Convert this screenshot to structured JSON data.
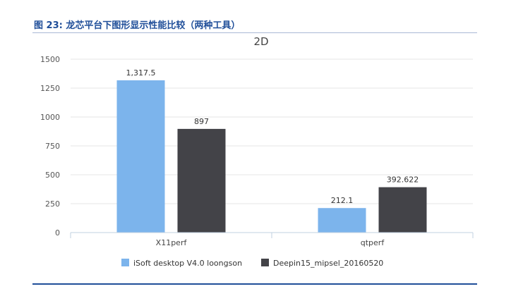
{
  "figure": {
    "caption": "图 23: 龙芯平台下图形显示性能比较（两种工具）"
  },
  "colors": {
    "series1": "#7cb4ec",
    "series2": "#434348",
    "grid": "#e6e6e6",
    "axis": "#c0d0e0",
    "caption": "#1f4e99"
  },
  "chart_data": {
    "type": "bar",
    "title": "2D",
    "xlabel": "",
    "ylabel": "",
    "categories": [
      "X11perf",
      "qtperf"
    ],
    "series": [
      {
        "name": "iSoft desktop V4.0 loongson",
        "values": [
          1317.5,
          212.1
        ],
        "labels": [
          "1,317.5",
          "212.1"
        ]
      },
      {
        "name": "Deepin15_mipsel_20160520",
        "values": [
          897,
          392.622
        ],
        "labels": [
          "897",
          "392.622"
        ]
      }
    ],
    "ylim": [
      0,
      1500
    ],
    "yticks": [
      0,
      250,
      500,
      750,
      1000,
      1250,
      1500
    ],
    "grid": true,
    "legend": "bottom-center"
  }
}
